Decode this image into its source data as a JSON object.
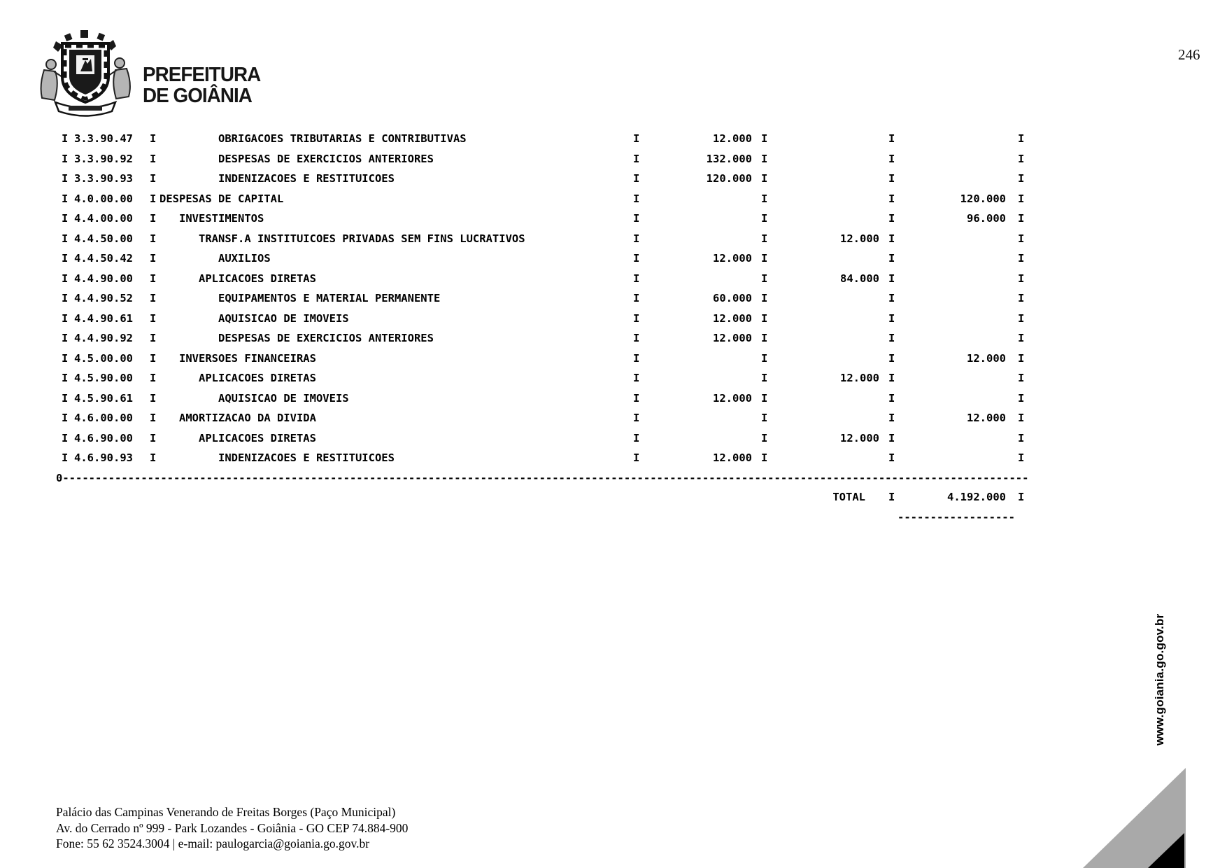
{
  "page": {
    "number": "246"
  },
  "header": {
    "brand_line1": "PREFEITURA",
    "brand_line2": "DE GOIÂNIA"
  },
  "report": {
    "column_separator": "I",
    "rows": [
      {
        "code": "3.3.90.47",
        "level": 3,
        "desc": "OBRIGACOES TRIBUTARIAS E CONTRIBUTIVAS",
        "col1": "12.000",
        "col2": "",
        "col3": ""
      },
      {
        "code": "3.3.90.92",
        "level": 3,
        "desc": "DESPESAS DE EXERCICIOS ANTERIORES",
        "col1": "132.000",
        "col2": "",
        "col3": ""
      },
      {
        "code": "3.3.90.93",
        "level": 3,
        "desc": "INDENIZACOES E RESTITUICOES",
        "col1": "120.000",
        "col2": "",
        "col3": ""
      },
      {
        "code": "4.0.00.00",
        "level": 0,
        "desc": "DESPESAS DE CAPITAL",
        "col1": "",
        "col2": "",
        "col3": "120.000"
      },
      {
        "code": "4.4.00.00",
        "level": 1,
        "desc": "INVESTIMENTOS",
        "col1": "",
        "col2": "",
        "col3": "96.000"
      },
      {
        "code": "4.4.50.00",
        "level": 2,
        "desc": "TRANSF.A INSTITUICOES PRIVADAS SEM FINS LUCRATIVOS",
        "col1": "",
        "col2": "12.000",
        "col3": ""
      },
      {
        "code": "4.4.50.42",
        "level": 3,
        "desc": "AUXILIOS",
        "col1": "12.000",
        "col2": "",
        "col3": ""
      },
      {
        "code": "4.4.90.00",
        "level": 2,
        "desc": "APLICACOES DIRETAS",
        "col1": "",
        "col2": "84.000",
        "col3": ""
      },
      {
        "code": "4.4.90.52",
        "level": 3,
        "desc": "EQUIPAMENTOS E MATERIAL PERMANENTE",
        "col1": "60.000",
        "col2": "",
        "col3": ""
      },
      {
        "code": "4.4.90.61",
        "level": 3,
        "desc": "AQUISICAO DE IMOVEIS",
        "col1": "12.000",
        "col2": "",
        "col3": ""
      },
      {
        "code": "4.4.90.92",
        "level": 3,
        "desc": "DESPESAS DE EXERCICIOS ANTERIORES",
        "col1": "12.000",
        "col2": "",
        "col3": ""
      },
      {
        "code": "4.5.00.00",
        "level": 1,
        "desc": "INVERSOES FINANCEIRAS",
        "col1": "",
        "col2": "",
        "col3": "12.000"
      },
      {
        "code": "4.5.90.00",
        "level": 2,
        "desc": "APLICACOES DIRETAS",
        "col1": "",
        "col2": "12.000",
        "col3": ""
      },
      {
        "code": "4.5.90.61",
        "level": 3,
        "desc": "AQUISICAO DE IMOVEIS",
        "col1": "12.000",
        "col2": "",
        "col3": ""
      },
      {
        "code": "4.6.00.00",
        "level": 1,
        "desc": "AMORTIZACAO DA DIVIDA",
        "col1": "",
        "col2": "",
        "col3": "12.000"
      },
      {
        "code": "4.6.90.00",
        "level": 2,
        "desc": "APLICACOES DIRETAS",
        "col1": "",
        "col2": "12.000",
        "col3": ""
      },
      {
        "code": "4.6.90.93",
        "level": 3,
        "desc": "INDENIZACOES E RESTITUICOES",
        "col1": "12.000",
        "col2": "",
        "col3": ""
      }
    ],
    "separator_prefix": "0",
    "separator_dashes": "----------------------------------------------------------------------------------------------------------------------------------------------------",
    "total_label": "TOTAL",
    "total_value": "4.192.000",
    "total_underline": "------------------"
  },
  "footer": {
    "address_line1": "Palácio das Campinas Venerando de Freitas Borges (Paço Municipal)",
    "address_line2": "Av. do Cerrado nº 999 - Park Lozandes - Goiânia - GO CEP 74.884-900",
    "address_line3": "Fone: 55 62 3524.3004 | e-mail: paulogarcia@goiania.go.gov.br",
    "website_vertical": "www.goiania.go.gov.br"
  },
  "colors": {
    "text": "#000000",
    "corner_gray": "#a9a9a9",
    "corner_black": "#000000"
  }
}
